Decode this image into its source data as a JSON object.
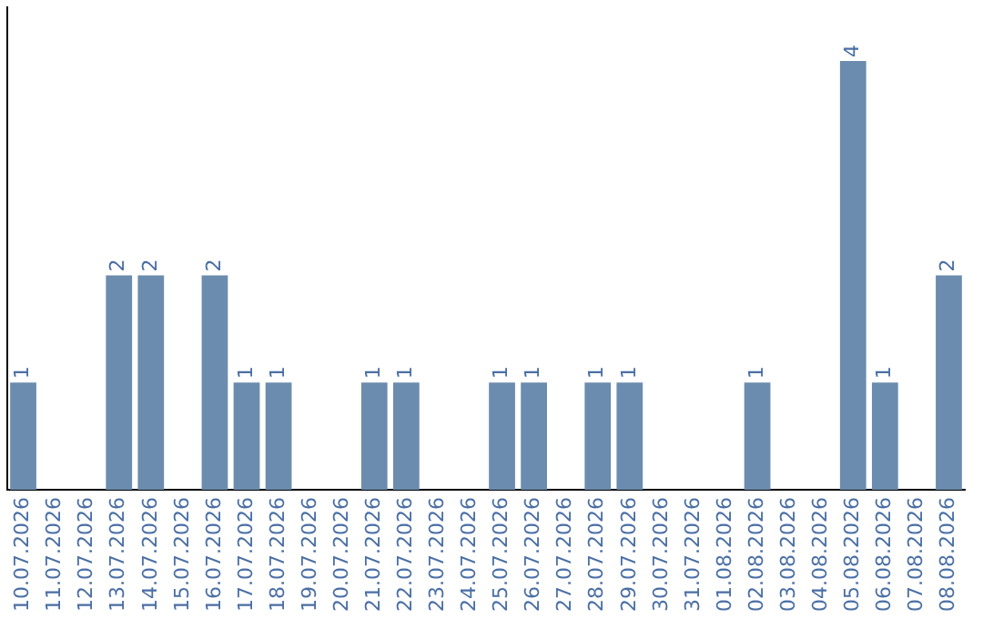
{
  "chart_data": {
    "type": "bar",
    "categories": [
      "10.07.2026",
      "11.07.2026",
      "12.07.2026",
      "13.07.2026",
      "14.07.2026",
      "15.07.2026",
      "16.07.2026",
      "17.07.2026",
      "18.07.2026",
      "19.07.2026",
      "20.07.2026",
      "21.07.2026",
      "22.07.2026",
      "23.07.2026",
      "24.07.2026",
      "25.07.2026",
      "26.07.2026",
      "27.07.2026",
      "28.07.2026",
      "29.07.2026",
      "30.07.2026",
      "31.07.2026",
      "01.08.2026",
      "02.08.2026",
      "03.08.2026",
      "04.08.2026",
      "05.08.2026",
      "06.08.2026",
      "07.08.2026",
      "08.08.2026"
    ],
    "values": [
      1,
      0,
      0,
      2,
      2,
      0,
      2,
      1,
      1,
      0,
      0,
      1,
      1,
      0,
      0,
      1,
      1,
      0,
      1,
      1,
      0,
      0,
      0,
      1,
      0,
      0,
      4,
      1,
      0,
      2
    ],
    "value_labels": [
      "1",
      null,
      null,
      "2",
      "2",
      null,
      "2",
      "1",
      "1",
      null,
      null,
      "1",
      "1",
      null,
      null,
      "1",
      "1",
      null,
      "1",
      "1",
      null,
      null,
      null,
      "1",
      null,
      null,
      "4",
      "1",
      null,
      "2"
    ],
    "color": "#6b8cae",
    "grid": false,
    "legend": false,
    "tick_labels": "x"
  }
}
